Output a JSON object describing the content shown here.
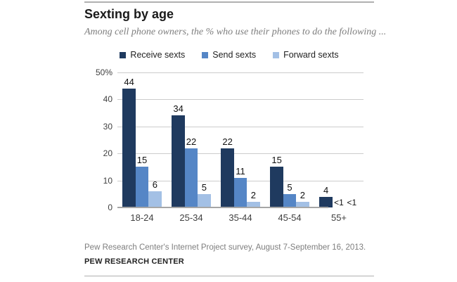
{
  "header": {
    "title": "Sexting by age",
    "subtitle": "Among cell phone owners, the % who use their phones to do the following ..."
  },
  "chart_data": {
    "type": "bar",
    "title": "Sexting by age",
    "categories": [
      "18-24",
      "25-34",
      "35-44",
      "45-54",
      "55+"
    ],
    "series": [
      {
        "name": "Receive sexts",
        "color": "#1f3a5f",
        "values": [
          44,
          34,
          22,
          15,
          4
        ],
        "labels": [
          "44",
          "34",
          "22",
          "15",
          "4"
        ]
      },
      {
        "name": "Send sexts",
        "color": "#5586c6",
        "values": [
          15,
          22,
          11,
          5,
          0.5
        ],
        "labels": [
          "15",
          "22",
          "11",
          "5",
          "<1"
        ]
      },
      {
        "name": "Forward sexts",
        "color": "#a3c0e5",
        "values": [
          6,
          5,
          2,
          2,
          0.5
        ],
        "labels": [
          "6",
          "5",
          "2",
          "2",
          "<1"
        ]
      }
    ],
    "ylim": [
      0,
      50
    ],
    "yticks": [
      {
        "value": 0,
        "label": "0"
      },
      {
        "value": 10,
        "label": "10"
      },
      {
        "value": 20,
        "label": "20"
      },
      {
        "value": 30,
        "label": "30"
      },
      {
        "value": 40,
        "label": "40"
      },
      {
        "value": 50,
        "label": "50%"
      }
    ],
    "grid": true,
    "legend_position": "top"
  },
  "footer": {
    "source": "Pew Research Center's Internet Project survey, August 7-September 16, 2013.",
    "brand": "PEW RESEARCH CENTER"
  }
}
